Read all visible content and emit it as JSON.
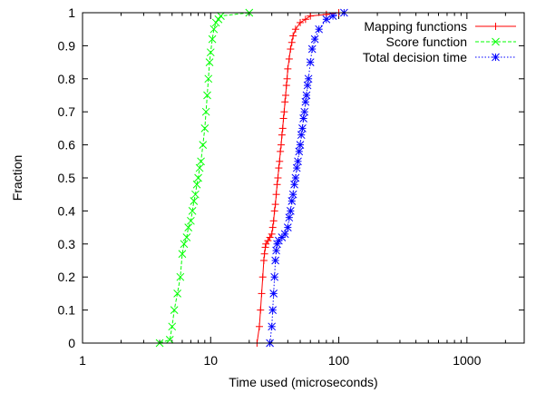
{
  "chart_data": {
    "type": "line",
    "title": "",
    "xlabel": "Time used (microseconds)",
    "ylabel": "Fraction",
    "x_scale": "log",
    "xlim": [
      1,
      2800
    ],
    "ylim": [
      0,
      1
    ],
    "x_ticks": [
      1,
      10,
      100,
      1000
    ],
    "x_tick_labels": [
      "1",
      "10",
      "100",
      "1000"
    ],
    "y_ticks": [
      0,
      0.1,
      0.2,
      0.3,
      0.4,
      0.5,
      0.6,
      0.7,
      0.8,
      0.9,
      1
    ],
    "y_tick_labels": [
      "0",
      "0.1",
      "0.2",
      "0.3",
      "0.4",
      "0.5",
      "0.6",
      "0.7",
      "0.8",
      "0.9",
      "1"
    ],
    "grid": false,
    "legend_position": "top-right",
    "series": [
      {
        "name": "Mapping functions",
        "color": "#ff0000",
        "dash": "solid",
        "marker": "plus",
        "x": [
          23,
          24,
          24.5,
          25,
          25.5,
          26,
          26.3,
          26.7,
          27,
          28,
          29,
          30,
          30.5,
          31,
          31.5,
          32,
          32.5,
          33,
          33.5,
          34,
          34.5,
          35,
          35.5,
          36,
          36.5,
          37,
          37.5,
          38,
          38.5,
          39,
          39.5,
          40,
          41,
          42,
          43,
          44,
          46,
          50,
          55,
          60,
          80,
          100
        ],
        "y": [
          0,
          0.05,
          0.1,
          0.15,
          0.2,
          0.25,
          0.27,
          0.29,
          0.3,
          0.31,
          0.32,
          0.33,
          0.35,
          0.37,
          0.4,
          0.42,
          0.45,
          0.48,
          0.5,
          0.53,
          0.55,
          0.58,
          0.6,
          0.63,
          0.65,
          0.68,
          0.7,
          0.73,
          0.75,
          0.78,
          0.8,
          0.83,
          0.86,
          0.89,
          0.91,
          0.93,
          0.95,
          0.97,
          0.98,
          0.99,
          0.995,
          1
        ]
      },
      {
        "name": "Score function",
        "color": "#00ff00",
        "dash": "dashed",
        "marker": "x",
        "x": [
          4,
          4.8,
          5,
          5.2,
          5.5,
          5.8,
          6,
          6.2,
          6.5,
          6.7,
          7,
          7.2,
          7.4,
          7.6,
          7.8,
          8,
          8.2,
          8.4,
          8.7,
          9,
          9.2,
          9.4,
          9.6,
          9.8,
          10,
          10.3,
          10.6,
          11,
          11.5,
          12,
          20
        ],
        "y": [
          0,
          0.01,
          0.05,
          0.1,
          0.15,
          0.2,
          0.27,
          0.3,
          0.32,
          0.35,
          0.37,
          0.4,
          0.43,
          0.45,
          0.48,
          0.5,
          0.53,
          0.55,
          0.6,
          0.65,
          0.7,
          0.75,
          0.8,
          0.85,
          0.88,
          0.92,
          0.95,
          0.97,
          0.98,
          0.99,
          1
        ]
      },
      {
        "name": "Total decision time",
        "color": "#0000ff",
        "dash": "dotted",
        "marker": "star",
        "x": [
          29,
          30,
          30.5,
          31,
          31.5,
          32,
          32.5,
          33,
          34,
          36,
          38,
          40,
          41,
          42,
          43,
          44,
          45,
          46,
          47,
          48,
          49,
          50,
          51,
          52,
          53,
          54,
          55,
          56,
          57,
          58,
          60,
          62,
          65,
          70,
          80,
          90,
          110
        ],
        "y": [
          0,
          0.05,
          0.1,
          0.15,
          0.2,
          0.25,
          0.28,
          0.3,
          0.31,
          0.32,
          0.33,
          0.35,
          0.38,
          0.4,
          0.43,
          0.45,
          0.48,
          0.5,
          0.53,
          0.55,
          0.58,
          0.6,
          0.63,
          0.65,
          0.68,
          0.7,
          0.73,
          0.75,
          0.78,
          0.8,
          0.85,
          0.89,
          0.92,
          0.95,
          0.98,
          0.99,
          1
        ]
      }
    ]
  }
}
